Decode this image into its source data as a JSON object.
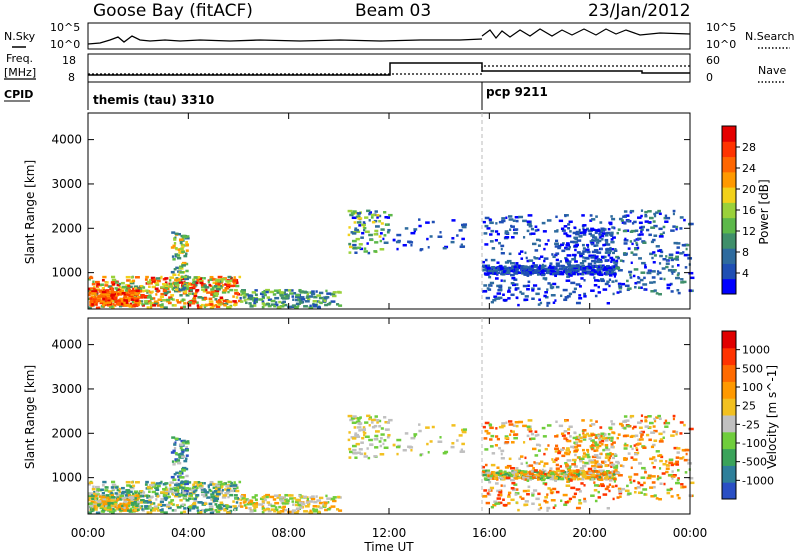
{
  "header": {
    "station": "Goose Bay (fitACF)",
    "beam": "Beam 03",
    "date": "23/Jan/2012"
  },
  "panels": {
    "nsky": {
      "left_label": "N.Sky",
      "left_ticks": [
        "10^5",
        "10^0"
      ],
      "right_ticks": [
        "10^5",
        "10^0"
      ],
      "right_label": "N.Search"
    },
    "freq": {
      "left_label_1": "Freq.",
      "left_label_2": "[MHz]",
      "left_ticks": [
        "18",
        "8"
      ],
      "right_ticks": [
        "60",
        "0"
      ],
      "right_label": "Nave"
    },
    "cpid": {
      "label": "CPID",
      "modes": [
        "themis (tau) 3310",
        "pcp 9211"
      ]
    }
  },
  "chart_data": [
    {
      "type": "heatmap",
      "title": "",
      "xlabel": "Time UT",
      "ylabel": "Slant Range [km]",
      "x_ticks": [
        "00:00",
        "04:00",
        "08:00",
        "12:00",
        "16:00",
        "20:00",
        "00:00"
      ],
      "xlim_hours": [
        0,
        24
      ],
      "y_ticks": [
        1000,
        2000,
        3000,
        4000
      ],
      "ylim": [
        180,
        4600
      ],
      "colorbar": {
        "label": "Power [dB]",
        "ticks": [
          "28",
          "24",
          "20",
          "16",
          "12",
          "8",
          "4"
        ],
        "range": [
          0,
          30
        ],
        "colors": [
          "#0000ff",
          "#1f4fb4",
          "#2e6b9e",
          "#3f8f6a",
          "#5cb84a",
          "#9ad13a",
          "#f2d11a",
          "#ff9900",
          "#ff6600",
          "#ff3300",
          "#e50000"
        ]
      }
    },
    {
      "type": "heatmap",
      "title": "",
      "xlabel": "Time UT",
      "ylabel": "Slant Range [km]",
      "x_ticks": [
        "00:00",
        "04:00",
        "08:00",
        "12:00",
        "16:00",
        "20:00",
        "00:00"
      ],
      "xlim_hours": [
        0,
        24
      ],
      "y_ticks": [
        1000,
        2000,
        3000,
        4000
      ],
      "ylim": [
        180,
        4600
      ],
      "colorbar": {
        "label": "Velocity [m s^-1]",
        "ticks": [
          "1000",
          "500",
          "100",
          "25",
          "-25",
          "-100",
          "-500",
          "-1000"
        ],
        "colors": [
          "#2a4fc4",
          "#2e7f9a",
          "#3aa35a",
          "#6fcd3c",
          "#c0c0c0",
          "#f2c020",
          "#ff9900",
          "#ff6a00",
          "#ff3300",
          "#e00000"
        ]
      }
    }
  ],
  "time_axis": {
    "ticks": [
      "00:00",
      "04:00",
      "08:00",
      "12:00",
      "16:00",
      "20:00",
      "00:00"
    ],
    "label": "Time UT"
  }
}
